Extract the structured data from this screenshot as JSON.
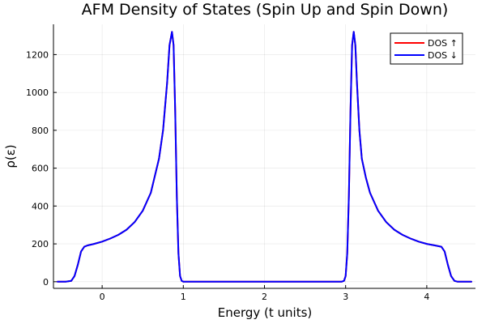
{
  "chart_data": {
    "type": "line",
    "title": "AFM Density of States  (Spin Up and Spin Down)",
    "xlabel": "Energy (t units)",
    "ylabel": "ρ(ε)",
    "xlim": [
      -0.6,
      4.6
    ],
    "ylim": [
      -35,
      1360
    ],
    "xticks": [
      0,
      1,
      2,
      3,
      4
    ],
    "yticks": [
      0,
      200,
      400,
      600,
      800,
      1000,
      1200
    ],
    "grid": true,
    "legend_position": "top-right",
    "x": [
      -0.55,
      -0.45,
      -0.38,
      -0.34,
      -0.3,
      -0.26,
      -0.22,
      -0.18,
      -0.1,
      0,
      0.1,
      0.2,
      0.3,
      0.4,
      0.5,
      0.6,
      0.7,
      0.75,
      0.8,
      0.83,
      0.86,
      0.88,
      0.9,
      0.92,
      0.94,
      0.96,
      0.98,
      1.0,
      1.02,
      1.05,
      1.2,
      1.5,
      2.0,
      2.5,
      2.8,
      2.95,
      2.98,
      3.0,
      3.02,
      3.04,
      3.06,
      3.08,
      3.1,
      3.12,
      3.14,
      3.17,
      3.2,
      3.25,
      3.3,
      3.4,
      3.5,
      3.6,
      3.7,
      3.8,
      3.9,
      4.0,
      4.1,
      4.18,
      4.22,
      4.26,
      4.3,
      4.34,
      4.38,
      4.45,
      4.55
    ],
    "series": [
      {
        "name": "DOS ↑",
        "color": "#ff0000",
        "values": [
          0,
          0,
          5,
          30,
          90,
          160,
          185,
          192,
          200,
          212,
          228,
          248,
          275,
          315,
          375,
          470,
          650,
          800,
          1050,
          1250,
          1320,
          1250,
          900,
          450,
          150,
          30,
          5,
          0,
          0,
          0,
          0,
          0,
          0,
          0,
          0,
          0,
          5,
          30,
          150,
          450,
          900,
          1250,
          1320,
          1250,
          1050,
          800,
          650,
          550,
          470,
          375,
          315,
          275,
          248,
          228,
          212,
          200,
          192,
          185,
          160,
          90,
          30,
          5,
          0,
          0,
          0
        ]
      },
      {
        "name": "DOS ↓",
        "color": "#0000ff",
        "values": [
          0,
          0,
          5,
          30,
          90,
          160,
          185,
          192,
          200,
          212,
          228,
          248,
          275,
          315,
          375,
          470,
          650,
          800,
          1050,
          1250,
          1320,
          1250,
          900,
          450,
          150,
          30,
          5,
          0,
          0,
          0,
          0,
          0,
          0,
          0,
          0,
          0,
          5,
          30,
          150,
          450,
          900,
          1250,
          1320,
          1250,
          1050,
          800,
          650,
          550,
          470,
          375,
          315,
          275,
          248,
          228,
          212,
          200,
          192,
          185,
          160,
          90,
          30,
          5,
          0,
          0,
          0
        ]
      }
    ]
  }
}
